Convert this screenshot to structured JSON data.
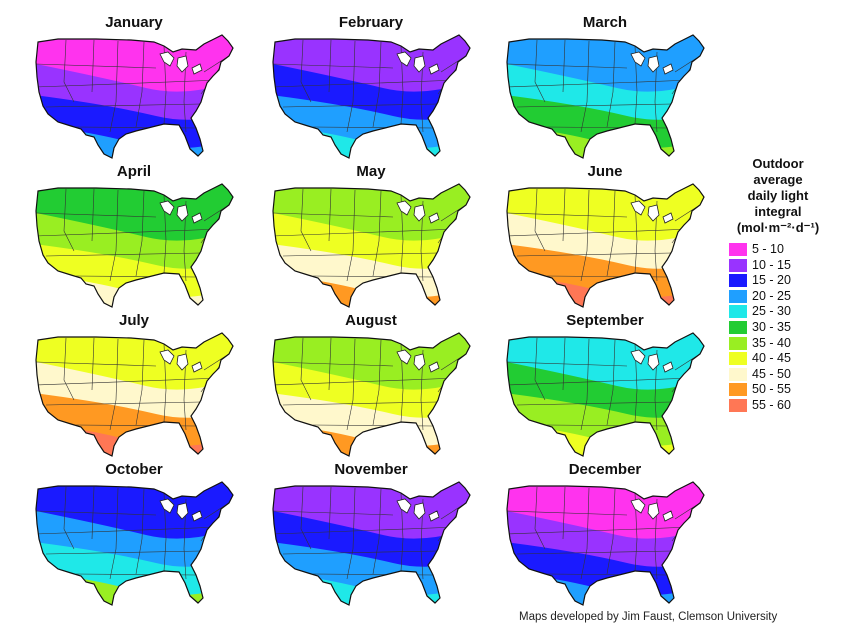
{
  "maps": [
    {
      "month": "January",
      "bands": [
        "#ff33ee",
        "#9933ff",
        "#1a1aff",
        "#1f9fff"
      ]
    },
    {
      "month": "February",
      "bands": [
        "#9933ff",
        "#1a1aff",
        "#1f9fff",
        "#1fe8e8"
      ]
    },
    {
      "month": "March",
      "bands": [
        "#1f9fff",
        "#1fe8e8",
        "#22cc33",
        "#99ee22"
      ]
    },
    {
      "month": "April",
      "bands": [
        "#22cc33",
        "#99ee22",
        "#eeff22",
        "#fff8cc"
      ]
    },
    {
      "month": "May",
      "bands": [
        "#99ee22",
        "#eeff22",
        "#fff8cc",
        "#ff9922"
      ]
    },
    {
      "month": "June",
      "bands": [
        "#eeff22",
        "#fff8cc",
        "#ff9922",
        "#ff7755"
      ]
    },
    {
      "month": "July",
      "bands": [
        "#eeff22",
        "#fff8cc",
        "#ff9922",
        "#ff7755"
      ]
    },
    {
      "month": "August",
      "bands": [
        "#99ee22",
        "#eeff22",
        "#fff8cc",
        "#ff9922"
      ]
    },
    {
      "month": "September",
      "bands": [
        "#1fe8e8",
        "#22cc33",
        "#99ee22",
        "#eeff22"
      ]
    },
    {
      "month": "October",
      "bands": [
        "#1a1aff",
        "#1f9fff",
        "#1fe8e8",
        "#99ee22"
      ]
    },
    {
      "month": "November",
      "bands": [
        "#9933ff",
        "#1a1aff",
        "#1f9fff",
        "#1fe8e8"
      ]
    },
    {
      "month": "December",
      "bands": [
        "#ff33ee",
        "#9933ff",
        "#1a1aff",
        "#1f9fff"
      ]
    }
  ],
  "legend": {
    "title_lines": [
      "Outdoor",
      "average",
      "daily light",
      "integral",
      "(mol·m⁻²·d⁻¹)"
    ],
    "items": [
      {
        "label": "5 - 10",
        "color": "#ff33ee"
      },
      {
        "label": "10 - 15",
        "color": "#9933ff"
      },
      {
        "label": "15 - 20",
        "color": "#1a1aff"
      },
      {
        "label": "20 - 25",
        "color": "#1f9fff"
      },
      {
        "label": "25 - 30",
        "color": "#1fe8e8"
      },
      {
        "label": "30 - 35",
        "color": "#22cc33"
      },
      {
        "label": "35 - 40",
        "color": "#99ee22"
      },
      {
        "label": "40 - 45",
        "color": "#eeff22"
      },
      {
        "label": "45 - 50",
        "color": "#fff8cc"
      },
      {
        "label": "50 - 55",
        "color": "#ff9922"
      },
      {
        "label": "55 - 60",
        "color": "#ff7755"
      }
    ]
  },
  "credit": "Maps developed by Jim Faust, Clemson University"
}
